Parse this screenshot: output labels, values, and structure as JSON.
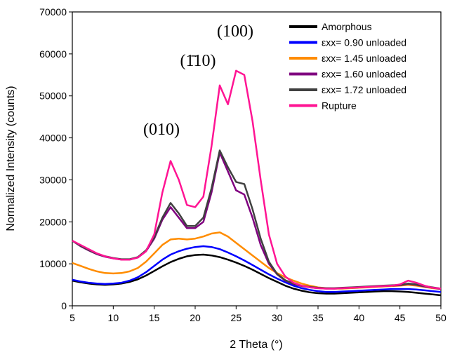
{
  "chart_data": {
    "type": "line",
    "x_label": "2 Theta (°)",
    "y_label": "Normalized Intensity (counts)",
    "annotations": [
      "(010)",
      "(1̄10)",
      "(100)"
    ],
    "x": [
      5,
      6,
      7,
      8,
      9,
      10,
      11,
      12,
      13,
      14,
      15,
      16,
      17,
      18,
      19,
      20,
      21,
      22,
      23,
      24,
      25,
      26,
      27,
      28,
      29,
      30,
      31,
      32,
      33,
      34,
      35,
      36,
      37,
      38,
      39,
      40,
      41,
      42,
      43,
      44,
      45,
      46,
      47,
      48,
      49,
      50
    ],
    "xlim": [
      5,
      50
    ],
    "xticks": [
      5,
      10,
      15,
      20,
      25,
      30,
      35,
      40,
      45,
      50
    ],
    "ylim": [
      0,
      70000
    ],
    "yticks": [
      0,
      10000,
      20000,
      30000,
      40000,
      50000,
      60000,
      70000
    ],
    "legend": "upper right",
    "series": [
      {
        "name": "Amorphous",
        "color": "#000000",
        "values": [
          6000,
          5600,
          5300,
          5100,
          5000,
          5100,
          5300,
          5700,
          6300,
          7200,
          8300,
          9400,
          10400,
          11200,
          11800,
          12100,
          12200,
          12000,
          11600,
          11000,
          10300,
          9500,
          8600,
          7600,
          6600,
          5700,
          4800,
          4100,
          3600,
          3200,
          3000,
          2900,
          2900,
          3000,
          3100,
          3200,
          3300,
          3400,
          3500,
          3500,
          3400,
          3300,
          3100,
          2900,
          2700,
          2500
        ]
      },
      {
        "name": "εxx= 0.90 unloaded",
        "color": "#0000ff",
        "values": [
          6200,
          5800,
          5500,
          5300,
          5200,
          5300,
          5500,
          6000,
          6800,
          8000,
          9500,
          11000,
          12200,
          13000,
          13600,
          14000,
          14200,
          14000,
          13500,
          12700,
          11800,
          10800,
          9700,
          8600,
          7500,
          6500,
          5600,
          4800,
          4200,
          3800,
          3500,
          3300,
          3300,
          3400,
          3500,
          3600,
          3700,
          3800,
          3900,
          4000,
          4000,
          4000,
          3900,
          3700,
          3500,
          3300
        ]
      },
      {
        "name": "εxx= 1.45 unloaded",
        "color": "#ff8c00",
        "values": [
          10200,
          9500,
          8800,
          8200,
          7800,
          7700,
          7800,
          8200,
          9000,
          10500,
          12500,
          14500,
          15800,
          16000,
          15800,
          16000,
          16500,
          17200,
          17500,
          16500,
          15000,
          13500,
          12000,
          10500,
          9000,
          7800,
          6800,
          6000,
          5300,
          4800,
          4400,
          4200,
          4100,
          4100,
          4200,
          4300,
          4400,
          4500,
          4600,
          4700,
          4800,
          5000,
          4800,
          4500,
          4200,
          4000
        ]
      },
      {
        "name": "εxx= 1.60 unloaded",
        "color": "#800080",
        "values": [
          15500,
          14200,
          13200,
          12300,
          11700,
          11300,
          11000,
          11000,
          11500,
          13000,
          16000,
          20500,
          23500,
          21000,
          18500,
          18500,
          20000,
          27000,
          36500,
          32000,
          27500,
          26500,
          21000,
          14500,
          10000,
          7500,
          6000,
          5200,
          4700,
          4400,
          4200,
          4100,
          4100,
          4200,
          4300,
          4400,
          4500,
          4600,
          4700,
          4800,
          4900,
          5200,
          5000,
          4600,
          4300,
          4000
        ]
      },
      {
        "name": "εxx= 1.72 unloaded",
        "color": "#404040",
        "values": [
          15500,
          14300,
          13300,
          12400,
          11800,
          11400,
          11100,
          11100,
          11600,
          13200,
          16300,
          21000,
          24500,
          22000,
          19000,
          19000,
          21000,
          28000,
          37000,
          33000,
          29500,
          29000,
          23000,
          16000,
          10500,
          7600,
          6100,
          5300,
          4800,
          4500,
          4300,
          4200,
          4200,
          4300,
          4400,
          4500,
          4600,
          4700,
          4800,
          4900,
          5000,
          5300,
          5100,
          4700,
          4400,
          4100
        ]
      },
      {
        "name": "Rupture",
        "color": "#ff1493",
        "values": [
          15500,
          14500,
          13500,
          12500,
          11800,
          11300,
          11000,
          11000,
          11500,
          13000,
          17000,
          27000,
          34500,
          30000,
          24000,
          23500,
          26000,
          38000,
          52500,
          48000,
          56000,
          55000,
          44000,
          30000,
          17000,
          10000,
          7000,
          5500,
          4800,
          4400,
          4200,
          4100,
          4100,
          4200,
          4300,
          4400,
          4500,
          4600,
          4700,
          4800,
          5100,
          6000,
          5500,
          4800,
          4300,
          4100
        ]
      }
    ]
  }
}
